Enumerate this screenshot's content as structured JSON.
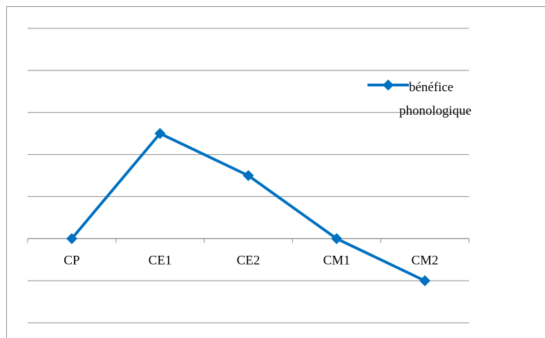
{
  "chart_data": {
    "type": "line",
    "categories": [
      "CP",
      "CE1",
      "CE2",
      "CM1",
      "CM2"
    ],
    "series": [
      {
        "name": "bénéfice phonologique",
        "color": "#0070c0",
        "values": [
          0,
          2.5,
          1.5,
          0,
          -1
        ]
      }
    ],
    "ylim": [
      -2,
      5
    ],
    "yticks": [
      -2,
      -1,
      0,
      1,
      2,
      3,
      4,
      5
    ],
    "grid": true,
    "legend": "right"
  }
}
